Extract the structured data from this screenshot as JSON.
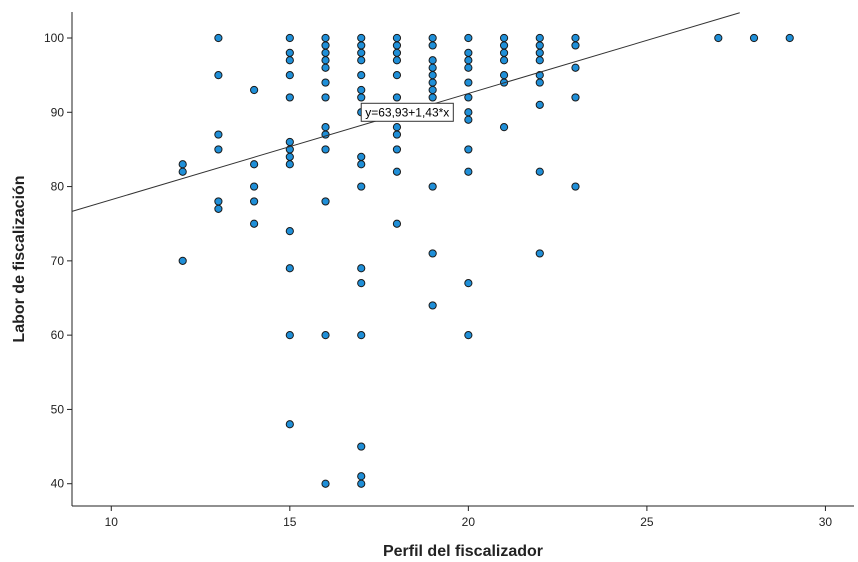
{
  "chart_data": {
    "type": "scatter",
    "title": "",
    "xlabel": "Perfil del fiscalizador",
    "ylabel": "Labor de fiscalización",
    "xlim": [
      8.9,
      30.8
    ],
    "ylim": [
      37,
      103.5
    ],
    "xticks": [
      10,
      15,
      20,
      25,
      30
    ],
    "yticks": [
      40,
      50,
      60,
      70,
      80,
      90,
      100
    ],
    "grid": false,
    "legend": "none",
    "point_color": "#1f8fd8",
    "point_edge_color": "#1a1a1a",
    "line_color": "#333333",
    "fit_line": {
      "intercept": 63.93,
      "slope": 1.43,
      "x_range": [
        8.9,
        27.6
      ],
      "label": "y=63,93+1,43*x"
    },
    "points": [
      [
        12,
        70
      ],
      [
        12,
        82
      ],
      [
        12,
        83
      ],
      [
        13,
        77
      ],
      [
        13,
        78
      ],
      [
        13,
        85
      ],
      [
        13,
        87
      ],
      [
        13,
        95
      ],
      [
        13,
        100
      ],
      [
        14,
        75
      ],
      [
        14,
        78
      ],
      [
        14,
        80
      ],
      [
        14,
        83
      ],
      [
        14,
        93
      ],
      [
        15,
        48
      ],
      [
        15,
        60
      ],
      [
        15,
        69
      ],
      [
        15,
        74
      ],
      [
        15,
        83
      ],
      [
        15,
        84
      ],
      [
        15,
        85
      ],
      [
        15,
        86
      ],
      [
        15,
        92
      ],
      [
        15,
        95
      ],
      [
        15,
        97
      ],
      [
        15,
        98
      ],
      [
        15,
        100
      ],
      [
        16,
        40
      ],
      [
        16,
        60
      ],
      [
        16,
        78
      ],
      [
        16,
        85
      ],
      [
        16,
        87
      ],
      [
        16,
        88
      ],
      [
        16,
        92
      ],
      [
        16,
        94
      ],
      [
        16,
        96
      ],
      [
        16,
        97
      ],
      [
        16,
        98
      ],
      [
        16,
        99
      ],
      [
        16,
        100
      ],
      [
        17,
        40
      ],
      [
        17,
        41
      ],
      [
        17,
        45
      ],
      [
        17,
        60
      ],
      [
        17,
        67
      ],
      [
        17,
        69
      ],
      [
        17,
        80
      ],
      [
        17,
        83
      ],
      [
        17,
        84
      ],
      [
        17,
        90
      ],
      [
        17,
        92
      ],
      [
        17,
        93
      ],
      [
        17,
        95
      ],
      [
        17,
        97
      ],
      [
        17,
        98
      ],
      [
        17,
        99
      ],
      [
        17,
        100
      ],
      [
        18,
        75
      ],
      [
        18,
        82
      ],
      [
        18,
        85
      ],
      [
        18,
        87
      ],
      [
        18,
        88
      ],
      [
        18,
        90
      ],
      [
        18,
        92
      ],
      [
        18,
        95
      ],
      [
        18,
        97
      ],
      [
        18,
        98
      ],
      [
        18,
        99
      ],
      [
        18,
        100
      ],
      [
        19,
        64
      ],
      [
        19,
        71
      ],
      [
        19,
        80
      ],
      [
        19,
        92
      ],
      [
        19,
        93
      ],
      [
        19,
        94
      ],
      [
        19,
        95
      ],
      [
        19,
        96
      ],
      [
        19,
        97
      ],
      [
        19,
        99
      ],
      [
        19,
        100
      ],
      [
        20,
        60
      ],
      [
        20,
        67
      ],
      [
        20,
        82
      ],
      [
        20,
        85
      ],
      [
        20,
        89
      ],
      [
        20,
        90
      ],
      [
        20,
        92
      ],
      [
        20,
        94
      ],
      [
        20,
        96
      ],
      [
        20,
        97
      ],
      [
        20,
        98
      ],
      [
        20,
        100
      ],
      [
        21,
        88
      ],
      [
        21,
        94
      ],
      [
        21,
        95
      ],
      [
        21,
        97
      ],
      [
        21,
        98
      ],
      [
        21,
        99
      ],
      [
        21,
        100
      ],
      [
        22,
        71
      ],
      [
        22,
        82
      ],
      [
        22,
        91
      ],
      [
        22,
        94
      ],
      [
        22,
        95
      ],
      [
        22,
        97
      ],
      [
        22,
        98
      ],
      [
        22,
        99
      ],
      [
        22,
        100
      ],
      [
        23,
        80
      ],
      [
        23,
        92
      ],
      [
        23,
        96
      ],
      [
        23,
        99
      ],
      [
        23,
        100
      ],
      [
        27,
        100
      ],
      [
        28,
        100
      ],
      [
        29,
        100
      ]
    ]
  }
}
